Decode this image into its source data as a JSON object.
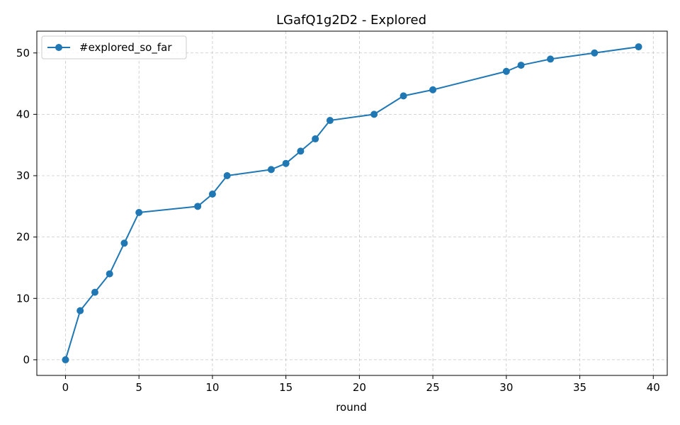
{
  "chart_data": {
    "type": "line",
    "title": "LGafQ1g2D2 - Explored",
    "xlabel": "round",
    "ylabel": "",
    "xlim": [
      -1.95,
      40.95
    ],
    "ylim": [
      -2.55,
      53.55
    ],
    "x_ticks": [
      0,
      5,
      10,
      15,
      20,
      25,
      30,
      35,
      40
    ],
    "y_ticks": [
      0,
      10,
      20,
      30,
      40,
      50
    ],
    "grid": true,
    "legend_position": "upper-left",
    "series": [
      {
        "name": "#explored_so_far",
        "color": "#1f77b4",
        "marker": "circle",
        "x": [
          0,
          1,
          2,
          3,
          4,
          5,
          9,
          10,
          11,
          14,
          15,
          16,
          17,
          18,
          21,
          23,
          25,
          30,
          31,
          33,
          36,
          39
        ],
        "y": [
          0,
          8,
          11,
          14,
          19,
          24,
          25,
          27,
          30,
          31,
          32,
          34,
          36,
          39,
          40,
          43,
          44,
          47,
          48,
          49,
          50,
          51
        ]
      }
    ]
  }
}
